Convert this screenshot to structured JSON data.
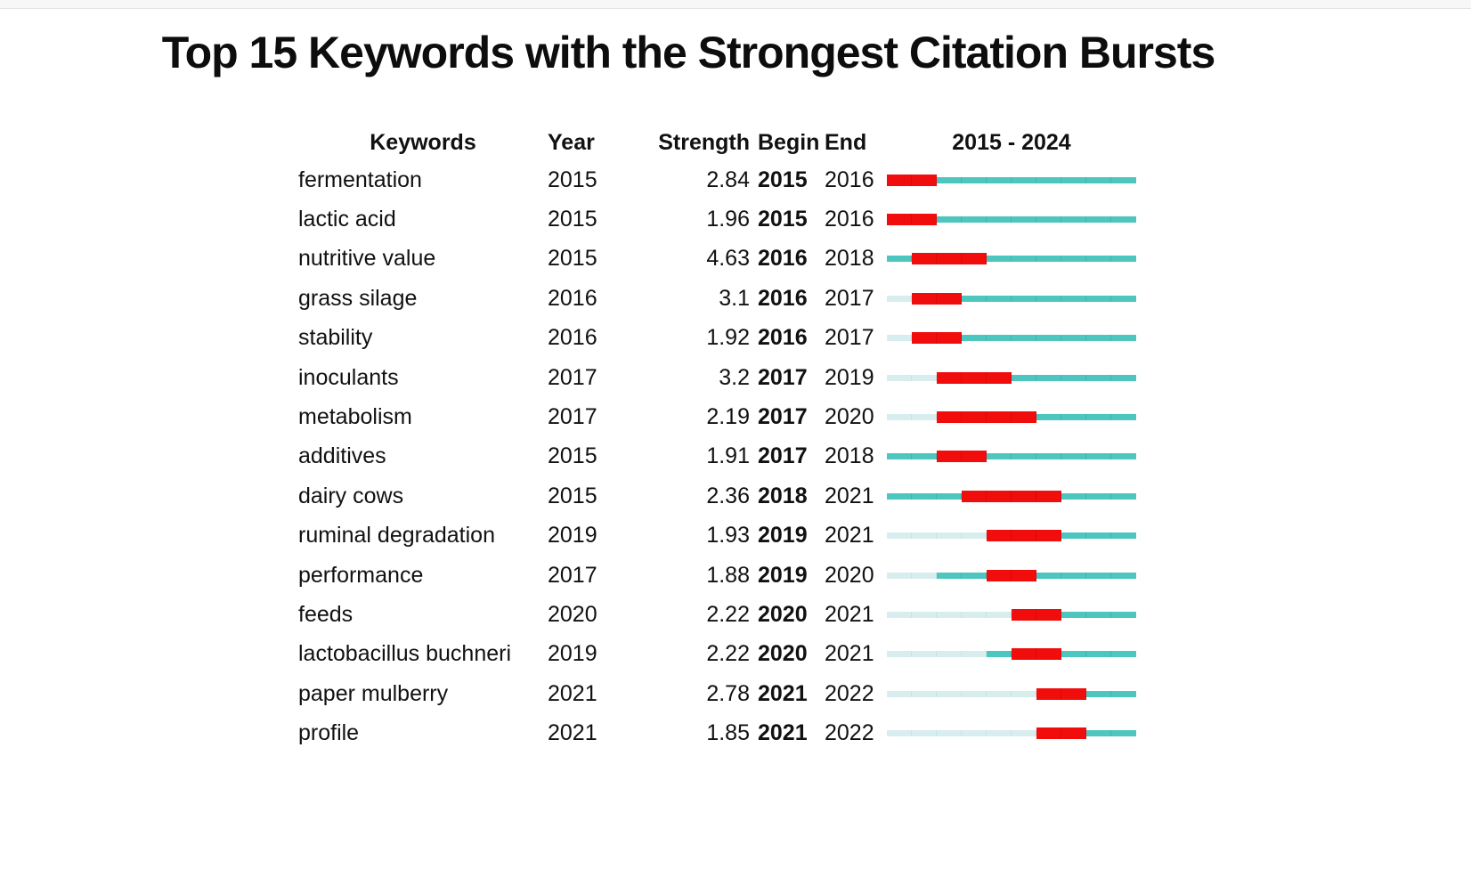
{
  "title": "Top 15 Keywords with the Strongest Citation Bursts",
  "chart_data": {
    "type": "table",
    "title": "Top 15 Keywords with the Strongest Citation Bursts",
    "columns": [
      "Keywords",
      "Year",
      "Strength",
      "Begin",
      "End",
      "2015 - 2024"
    ],
    "timeline_range": [
      2015,
      2024
    ],
    "timeline_label": "2015 - 2024",
    "rows": [
      {
        "keyword": "fermentation",
        "year": 2015,
        "strength": "2.84",
        "begin": 2015,
        "end": 2016
      },
      {
        "keyword": "lactic acid",
        "year": 2015,
        "strength": "1.96",
        "begin": 2015,
        "end": 2016
      },
      {
        "keyword": "nutritive value",
        "year": 2015,
        "strength": "4.63",
        "begin": 2016,
        "end": 2018
      },
      {
        "keyword": "grass silage",
        "year": 2016,
        "strength": "3.1",
        "begin": 2016,
        "end": 2017
      },
      {
        "keyword": "stability",
        "year": 2016,
        "strength": "1.92",
        "begin": 2016,
        "end": 2017
      },
      {
        "keyword": "inoculants",
        "year": 2017,
        "strength": "3.2",
        "begin": 2017,
        "end": 2019
      },
      {
        "keyword": "metabolism",
        "year": 2017,
        "strength": "2.19",
        "begin": 2017,
        "end": 2020
      },
      {
        "keyword": "additives",
        "year": 2015,
        "strength": "1.91",
        "begin": 2017,
        "end": 2018
      },
      {
        "keyword": "dairy cows",
        "year": 2015,
        "strength": "2.36",
        "begin": 2018,
        "end": 2021
      },
      {
        "keyword": "ruminal degradation",
        "year": 2019,
        "strength": "1.93",
        "begin": 2019,
        "end": 2021
      },
      {
        "keyword": "performance",
        "year": 2017,
        "strength": "1.88",
        "begin": 2019,
        "end": 2020
      },
      {
        "keyword": "feeds",
        "year": 2020,
        "strength": "2.22",
        "begin": 2020,
        "end": 2021
      },
      {
        "keyword": "lactobacillus buchneri",
        "year": 2019,
        "strength": "2.22",
        "begin": 2020,
        "end": 2021
      },
      {
        "keyword": "paper mulberry",
        "year": 2021,
        "strength": "2.78",
        "begin": 2021,
        "end": 2022
      },
      {
        "keyword": "profile",
        "year": 2021,
        "strength": "1.85",
        "begin": 2021,
        "end": 2022
      }
    ],
    "legend": {
      "burst_color": "#f20d0d",
      "burst_separator_color": "#d60b0b",
      "active_color": "#4ec6c0",
      "active_separator_color": "#3db6b1",
      "pre_appearance_color": "#d8edee",
      "pre_appearance_separator_color": "#c9e4e6"
    }
  }
}
